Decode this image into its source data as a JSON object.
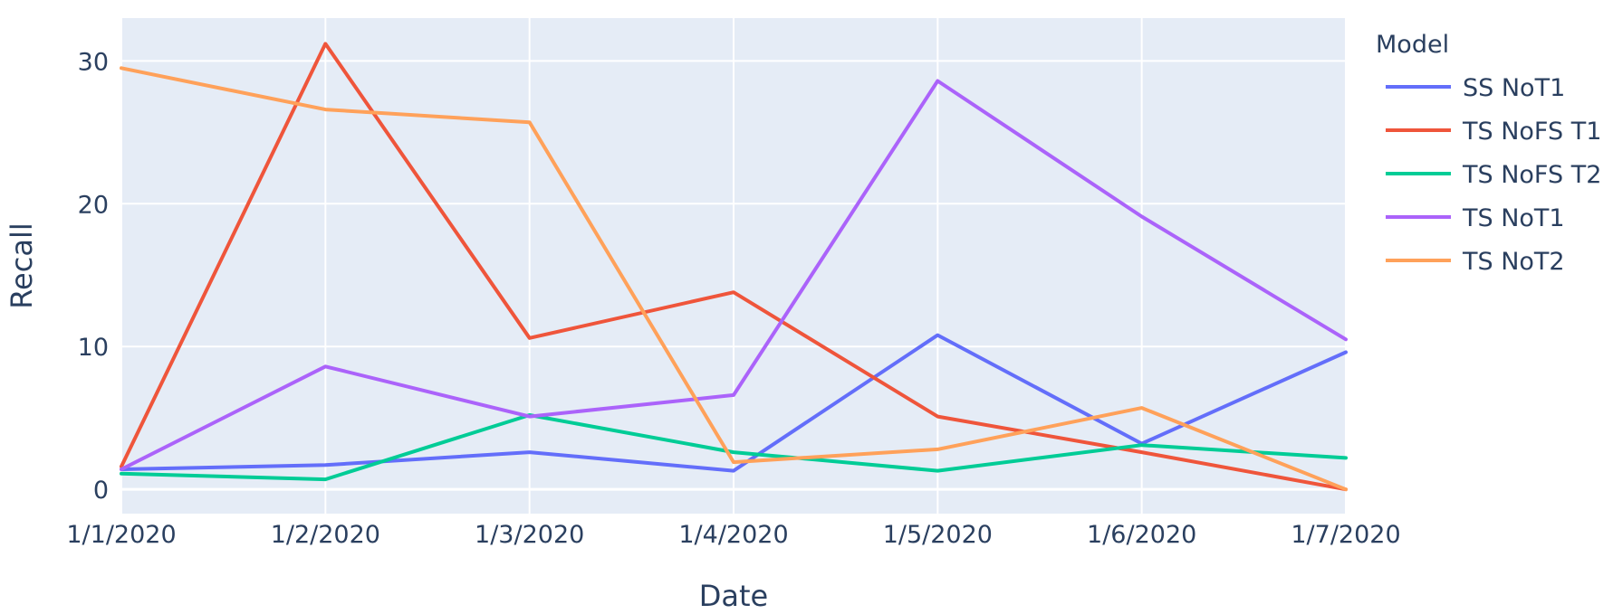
{
  "chart_data": {
    "type": "line",
    "x": [
      "1/1/2020",
      "1/2/2020",
      "1/3/2020",
      "1/4/2020",
      "1/5/2020",
      "1/6/2020",
      "1/7/2020"
    ],
    "xlabel": "Date",
    "ylabel": "Recall",
    "yticks": [
      0,
      10,
      20,
      30
    ],
    "ylim": [
      -1.7,
      33
    ],
    "grid": true,
    "legend": {
      "title": "Model",
      "placement": "right"
    },
    "colors": {
      "plot_background": "#e5ecf6",
      "grid": "#ffffff",
      "text": "#2a3f5f"
    },
    "series": [
      {
        "name": "SS NoT1",
        "color": "#636efa",
        "values": [
          1.4,
          1.7,
          2.6,
          1.3,
          10.8,
          3.2,
          9.6
        ]
      },
      {
        "name": "TS NoFS T1",
        "color": "#ef553b",
        "values": [
          1.6,
          31.2,
          10.6,
          13.8,
          5.1,
          2.6,
          0
        ]
      },
      {
        "name": "TS NoFS T2",
        "color": "#00cc96",
        "values": [
          1.1,
          0.7,
          5.2,
          2.6,
          1.3,
          3.1,
          2.2
        ]
      },
      {
        "name": "TS NoT1",
        "color": "#ab63fa",
        "values": [
          1.4,
          8.6,
          5.1,
          6.6,
          28.6,
          19.1,
          10.5
        ]
      },
      {
        "name": "TS NoT2",
        "color": "#ffa15a",
        "values": [
          29.5,
          26.6,
          25.7,
          1.9,
          2.8,
          5.7,
          0
        ]
      }
    ]
  }
}
